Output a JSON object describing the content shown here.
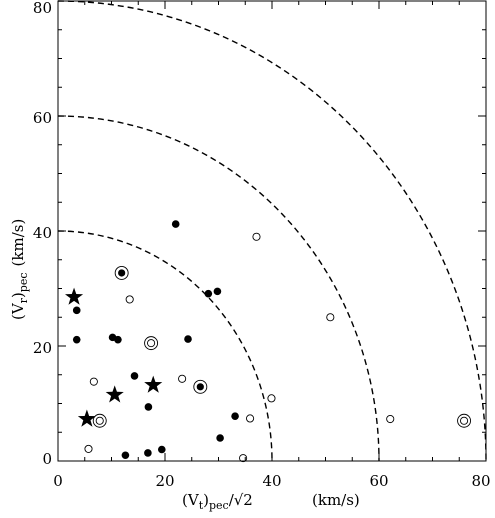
{
  "chart_data": {
    "type": "scatter",
    "title": "",
    "xlabel": {
      "parts": [
        {
          "text": "(V",
          "sub": false
        },
        {
          "text": "t",
          "sub": true
        },
        {
          "text": ")",
          "sub": false
        },
        {
          "text": "pec",
          "sub": true
        },
        {
          "text": "/√2",
          "sub": false
        }
      ],
      "unit": "(km/s)"
    },
    "ylabel": {
      "parts": [
        {
          "text": "(V",
          "sub": false
        },
        {
          "text": "r",
          "sub": true
        },
        {
          "text": ")",
          "sub": false
        },
        {
          "text": "pec",
          "sub": true
        }
      ],
      "unit": "(km/s)"
    },
    "xlim": [
      0,
      80
    ],
    "ylim": [
      0,
      80
    ],
    "x_ticks": [
      0,
      20,
      40,
      60,
      80
    ],
    "y_ticks": [
      0,
      20,
      40,
      60,
      80
    ],
    "x_tick_labels": [
      "0",
      "20",
      "40",
      "60",
      "80"
    ],
    "y_tick_labels": [
      "0",
      "20",
      "40",
      "60",
      "80"
    ],
    "grid": false,
    "legend": "none",
    "reference_curves": {
      "type": "dashed-quarter-circle",
      "radii": [
        40,
        60,
        80
      ]
    },
    "series": [
      {
        "marker": "filled-circle",
        "points": [
          [
            3.5,
            26.2
          ],
          [
            3.5,
            21.1
          ],
          [
            10.2,
            21.5
          ],
          [
            11.2,
            21.1
          ],
          [
            14.3,
            14.8
          ],
          [
            16.9,
            9.4
          ],
          [
            16.8,
            1.4
          ],
          [
            19.4,
            2.0
          ],
          [
            22.0,
            41.2
          ],
          [
            24.3,
            21.2
          ],
          [
            28.1,
            29.1
          ],
          [
            29.8,
            29.5
          ],
          [
            30.3,
            4.0
          ],
          [
            33.1,
            7.8
          ],
          [
            12.6,
            1.0
          ]
        ]
      },
      {
        "marker": "open-circle",
        "points": [
          [
            5.7,
            2.1
          ],
          [
            6.7,
            13.8
          ],
          [
            13.4,
            28.1
          ],
          [
            23.2,
            14.3
          ],
          [
            35.9,
            7.4
          ],
          [
            34.6,
            0.5
          ],
          [
            37.1,
            39.0
          ],
          [
            39.9,
            10.9
          ],
          [
            50.9,
            25.0
          ],
          [
            62.1,
            7.3
          ]
        ]
      },
      {
        "marker": "circled-dot",
        "points": [
          [
            11.9,
            32.7
          ],
          [
            26.6,
            12.9
          ]
        ]
      },
      {
        "marker": "double-circle",
        "points": [
          [
            7.8,
            7.0
          ],
          [
            17.4,
            20.5
          ],
          [
            75.9,
            7.0
          ]
        ]
      },
      {
        "marker": "star",
        "points": [
          [
            3.0,
            28.5
          ],
          [
            5.4,
            7.3
          ],
          [
            10.6,
            11.5
          ],
          [
            17.8,
            13.2
          ]
        ]
      }
    ]
  }
}
